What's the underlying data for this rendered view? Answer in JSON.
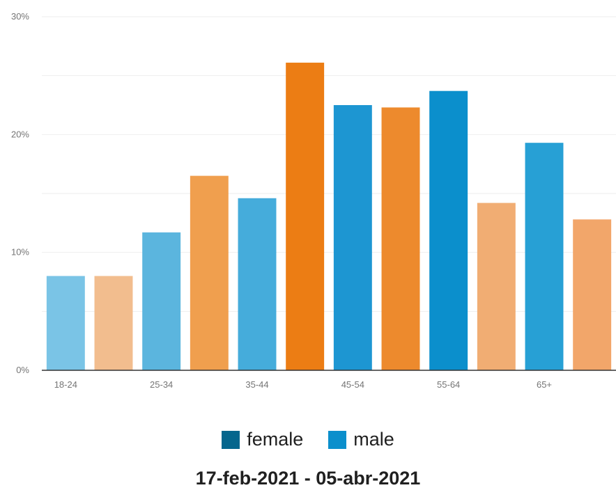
{
  "chart_data": {
    "type": "bar",
    "categories": [
      "18-24",
      "25-34",
      "35-44",
      "45-54",
      "55-64",
      "65+"
    ],
    "series": [
      {
        "name": "male",
        "values": [
          8.0,
          11.7,
          14.6,
          22.5,
          23.7,
          19.3
        ],
        "colors": [
          "#7ac4e6",
          "#5bb5de",
          "#45acdb",
          "#1d96d2",
          "#0b8fcc",
          "#27a0d5"
        ]
      },
      {
        "name": "female",
        "values": [
          8.0,
          16.5,
          26.1,
          22.3,
          14.2,
          12.8
        ],
        "colors": [
          "#f2bd8e",
          "#f09f4e",
          "#ec7d14",
          "#ed8a2d",
          "#f1ad73",
          "#f2a66a"
        ]
      }
    ],
    "y_ticks": [
      "0%",
      "10%",
      "20%",
      "30%"
    ],
    "y_tick_values": [
      0,
      10,
      20,
      30
    ],
    "ylim": [
      0,
      30
    ],
    "grid": true,
    "legend_position": "bottom",
    "title": "",
    "xlabel": "",
    "ylabel": ""
  },
  "legend": {
    "items": [
      {
        "label": "female",
        "color": "#05668d"
      },
      {
        "label": "male",
        "color": "#0b8fcc"
      }
    ]
  },
  "footer": {
    "date_range": "17-feb-2021 - 05-abr-2021"
  },
  "colors": {
    "grid": "#eeeeee",
    "axis": "#333333",
    "tick_text": "#757575"
  }
}
